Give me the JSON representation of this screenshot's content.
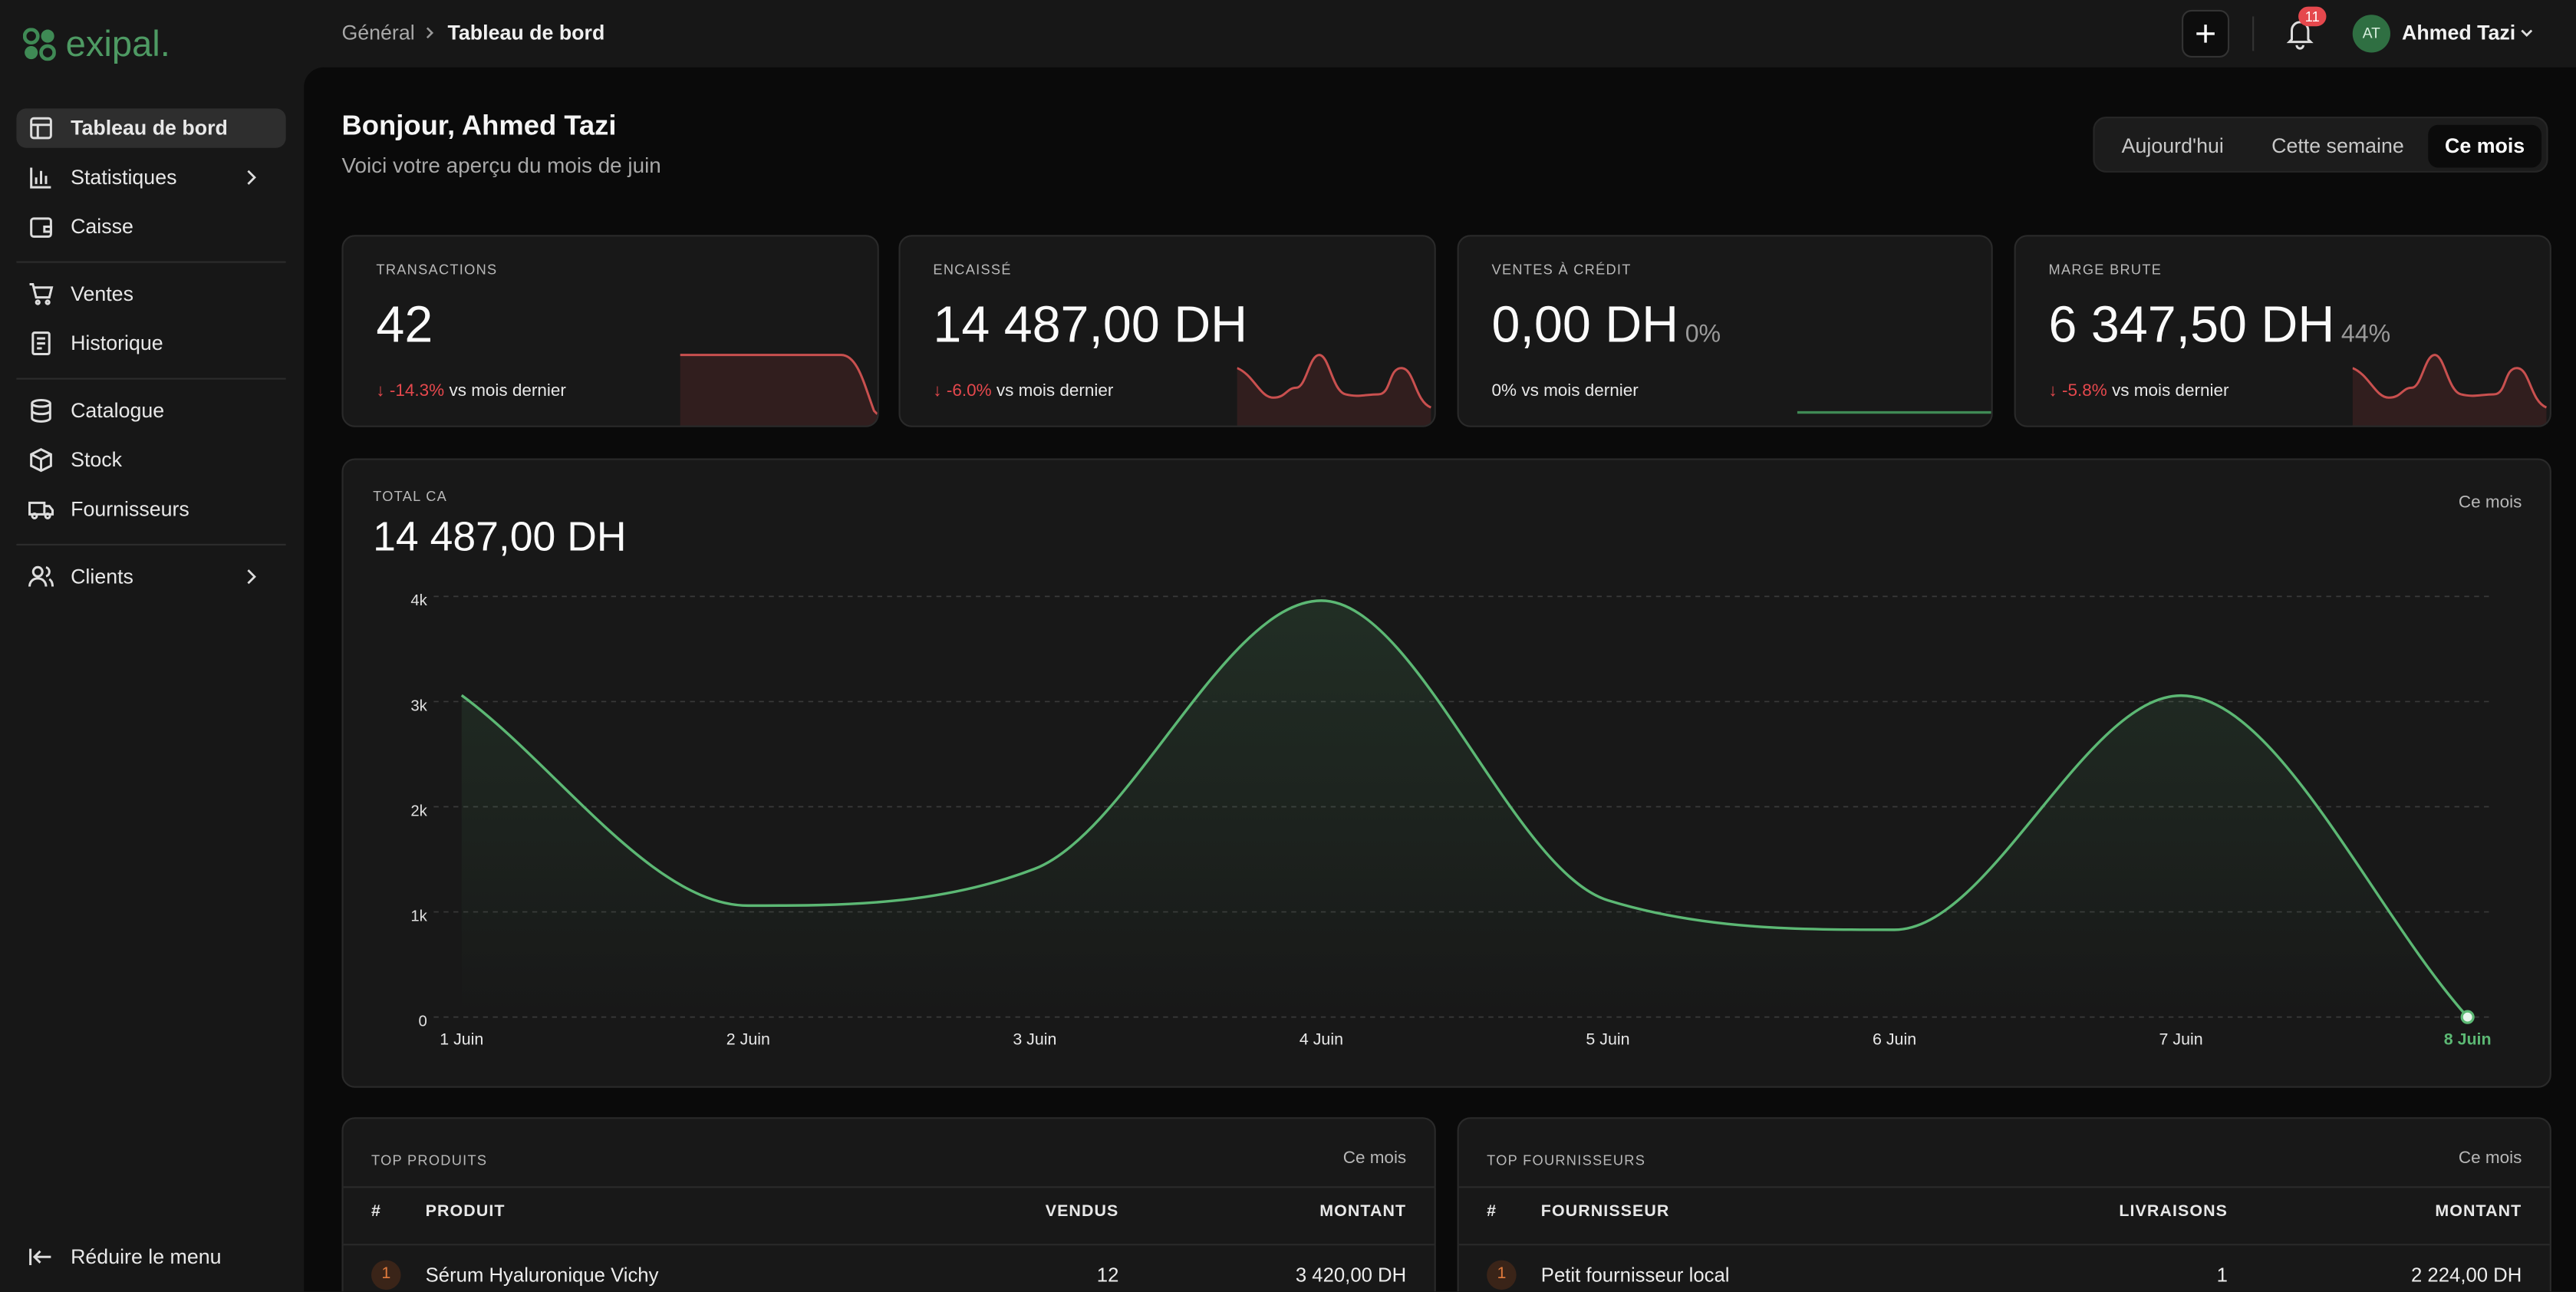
{
  "header": {
    "logo": "exipal.",
    "breadcrumb": [
      "Général",
      "Tableau de bord"
    ],
    "notifications": "11",
    "avatar": "AT",
    "user": "Ahmed Tazi"
  },
  "sidebar": {
    "items": [
      "Tableau de bord",
      "Statistiques",
      "Caisse",
      "Ventes",
      "Historique",
      "Catalogue",
      "Stock",
      "Fournisseurs",
      "Clients"
    ],
    "collapse": "Réduire le menu"
  },
  "greeting": {
    "title": "Bonjour, Ahmed Tazi",
    "subtitle": "Voici votre aperçu du mois de juin"
  },
  "periods": [
    "Aujourd'hui",
    "Cette semaine",
    "Ce mois"
  ],
  "kpis": [
    {
      "label": "TRANSACTIONS",
      "value": "42",
      "change": "-14.3%",
      "note": "vs mois dernier"
    },
    {
      "label": "ENCAISSÉ",
      "value": "14 487,00 DH",
      "change": "-6.0%",
      "note": "vs mois dernier"
    },
    {
      "label": "VENTES À CRÉDIT",
      "value": "0,00 DH",
      "share": "0%",
      "change": "0%",
      "note": "vs mois dernier"
    },
    {
      "label": "MARGE BRUTE",
      "value": "6 347,50 DH",
      "share": "44%",
      "change": "-5.8%",
      "note": "vs mois dernier"
    }
  ],
  "chart_data": {
    "type": "line",
    "title": "TOTAL CA",
    "subtitle": "14 487,00 DH",
    "period": "Ce mois",
    "categories": [
      "1 Juin",
      "2 Juin",
      "3 Juin",
      "4 Juin",
      "5 Juin",
      "6 Juin",
      "7 Juin",
      "8 Juin"
    ],
    "series": [
      {
        "name": "CA",
        "color": "#5cb874",
        "values": [
          3060,
          1060,
          1410,
          3960,
          1110,
          830,
          3057,
          0
        ]
      }
    ],
    "ylim": [
      0,
      4000
    ],
    "yticks": [
      0,
      {
        "value": 1000,
        "label": "1k"
      },
      {
        "value": 2000,
        "label": "2k"
      },
      {
        "value": 3000,
        "label": "3k"
      },
      {
        "value": 4000,
        "label": "4k"
      }
    ],
    "grid": true
  },
  "top_products": {
    "title": "TOP PRODUITS",
    "period": "Ce mois",
    "columns": [
      "#",
      "PRODUIT",
      "VENDUS",
      "MONTANT"
    ],
    "rows": [
      [
        "1",
        "Sérum Hyaluronique Vichy",
        "12",
        "3 420,00 DH"
      ]
    ]
  },
  "top_suppliers": {
    "title": "TOP FOURNISSEURS",
    "period": "Ce mois",
    "columns": [
      "#",
      "FOURNISSEUR",
      "LIVRAISONS",
      "MONTANT"
    ],
    "rows": [
      [
        "1",
        "Petit fournisseur local",
        "1",
        "2 224,00 DH"
      ]
    ]
  }
}
